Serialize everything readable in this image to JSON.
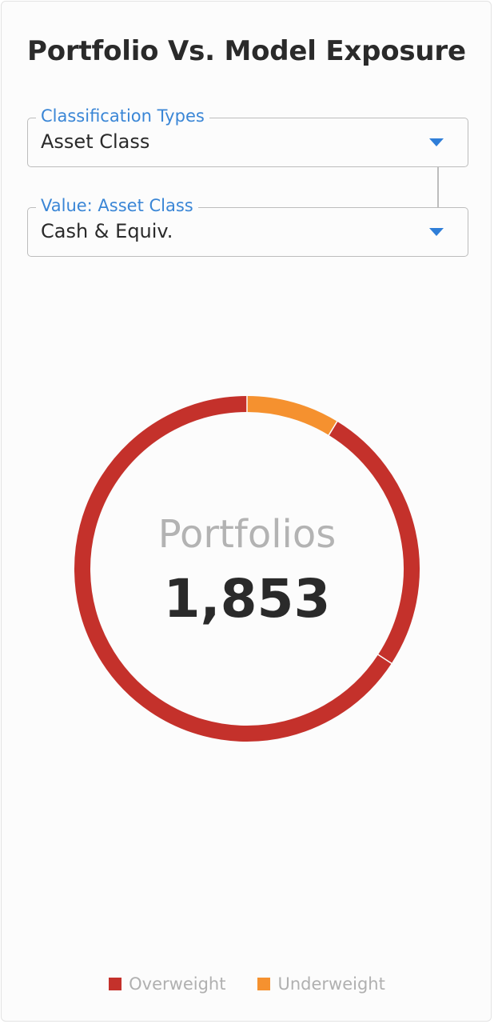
{
  "header": {
    "title": "Portfolio Vs. Model Exposure"
  },
  "filters": {
    "classification": {
      "label": "Classification Types",
      "value": "Asset Class"
    },
    "value_filter": {
      "label": "Value: Asset Class",
      "value": "Cash & Equiv."
    }
  },
  "chart_data": {
    "type": "pie",
    "title": "",
    "center_label": "Portfolios",
    "center_value": "1,853",
    "legend_position": "bottom",
    "segments": [
      {
        "series": "Underweight",
        "value": 162,
        "color": "#f5912f"
      },
      {
        "series": "Overweight",
        "value": 472,
        "color": "#c4312b"
      },
      {
        "series": "Overweight",
        "value": 1219,
        "color": "#c4312b"
      }
    ],
    "legend": [
      {
        "name": "Overweight",
        "color": "#c4312b"
      },
      {
        "name": "Underweight",
        "color": "#f5912f"
      }
    ]
  }
}
